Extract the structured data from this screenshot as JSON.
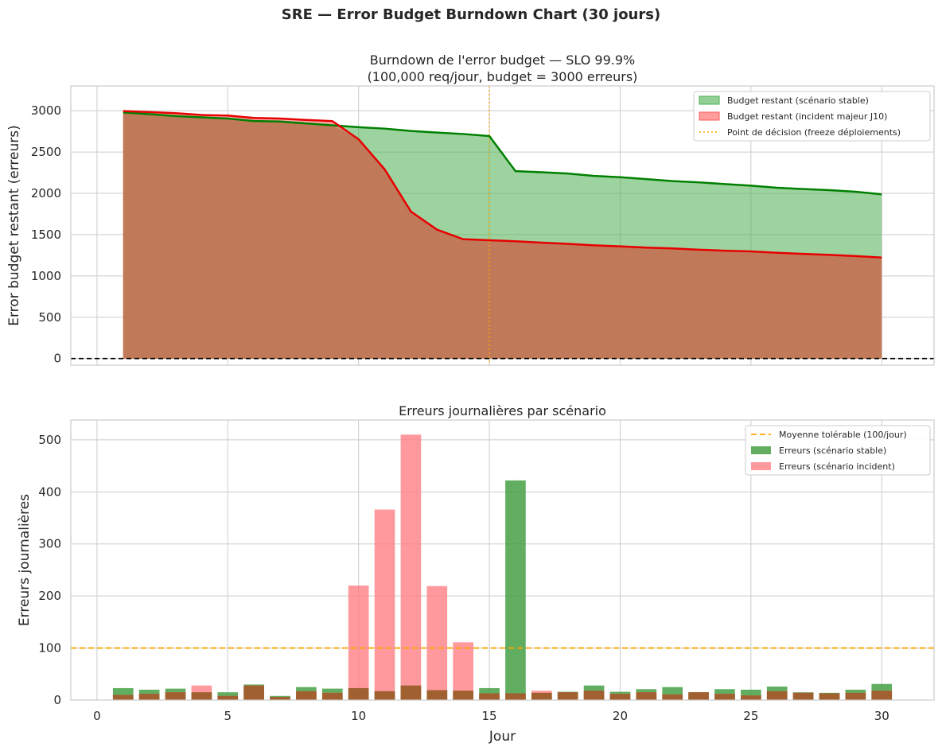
{
  "suptitle": "SRE — Error Budget Burndown Chart (30 jours)",
  "colors": {
    "stable_line": "#008000",
    "stable_fill": "#4caf50",
    "incident_line": "#e60000",
    "incident_fill": "#ff5c5c",
    "overlap_fill": "#c07a5a",
    "decision": "#ffa500",
    "zero_line": "#000000",
    "bar_stable": "#3a9a3a",
    "bar_incident": "#ff7f84",
    "bar_overlap": "#a0602f",
    "grid": "#cccccc"
  },
  "chart_data": [
    {
      "type": "area",
      "title_line1": "Burndown de l'error budget — SLO 99.9%",
      "title_line2": "(100,000 req/jour, budget = 3000 erreurs)",
      "xlabel": "",
      "ylabel": "Error budget restant (erreurs)",
      "xlim": [
        -1,
        32
      ],
      "ylim": [
        -80,
        3300
      ],
      "xticks": [
        0,
        5,
        10,
        15,
        20,
        25,
        30
      ],
      "yticks": [
        0,
        500,
        1000,
        1500,
        2000,
        2500,
        3000
      ],
      "grid": true,
      "legend_position": "top-right",
      "decision_day": 15,
      "x": [
        1,
        2,
        3,
        4,
        5,
        6,
        7,
        8,
        9,
        10,
        11,
        12,
        13,
        14,
        15,
        16,
        17,
        18,
        19,
        20,
        21,
        22,
        23,
        24,
        25,
        26,
        27,
        28,
        29,
        30
      ],
      "series": [
        {
          "name": "Budget restant (scénario stable)",
          "values": [
            2978,
            2958,
            2935,
            2920,
            2905,
            2875,
            2869,
            2846,
            2823,
            2800,
            2783,
            2755,
            2736,
            2718,
            2693,
            2268,
            2255,
            2240,
            2211,
            2195,
            2172,
            2148,
            2133,
            2112,
            2093,
            2067,
            2052,
            2039,
            2019,
            1988
          ]
        },
        {
          "name": "Budget restant (incident majeur J10)",
          "values": [
            2995,
            2984,
            2970,
            2948,
            2941,
            2912,
            2905,
            2888,
            2874,
            2655,
            2290,
            1780,
            1560,
            1445,
            1432,
            1420,
            1403,
            1388,
            1370,
            1358,
            1343,
            1333,
            1318,
            1306,
            1297,
            1280,
            1267,
            1255,
            1241,
            1223
          ]
        }
      ],
      "annotations": [
        "Point de décision (freeze déploiements)"
      ]
    },
    {
      "type": "bar",
      "title": "Erreurs journalières par scénario",
      "xlabel": "Jour",
      "ylabel": "Erreurs journalières",
      "xlim": [
        -1,
        32
      ],
      "ylim": [
        0,
        538
      ],
      "xticks": [
        0,
        5,
        10,
        15,
        20,
        25,
        30
      ],
      "yticks": [
        0,
        100,
        200,
        300,
        400,
        500
      ],
      "grid": true,
      "legend_position": "top-right",
      "threshold": {
        "name": "Moyenne tolérable (100/jour)",
        "value": 100
      },
      "x": [
        1,
        2,
        3,
        4,
        5,
        6,
        7,
        8,
        9,
        10,
        11,
        12,
        13,
        14,
        15,
        16,
        17,
        18,
        19,
        20,
        21,
        22,
        23,
        24,
        25,
        26,
        27,
        28,
        29,
        30
      ],
      "series": [
        {
          "name": "Erreurs (scénario stable)",
          "values": [
            23,
            20,
            22,
            15,
            15,
            30,
            8,
            25,
            22,
            23,
            17,
            28,
            19,
            18,
            23,
            422,
            14,
            16,
            28,
            16,
            21,
            25,
            15,
            21,
            20,
            26,
            15,
            14,
            20,
            31
          ]
        },
        {
          "name": "Erreurs (scénario incident)",
          "values": [
            10,
            12,
            15,
            28,
            8,
            28,
            6,
            17,
            14,
            220,
            366,
            510,
            219,
            111,
            13,
            13,
            18,
            15,
            18,
            12,
            15,
            11,
            15,
            12,
            9,
            17,
            14,
            13,
            14,
            18
          ]
        }
      ]
    }
  ]
}
